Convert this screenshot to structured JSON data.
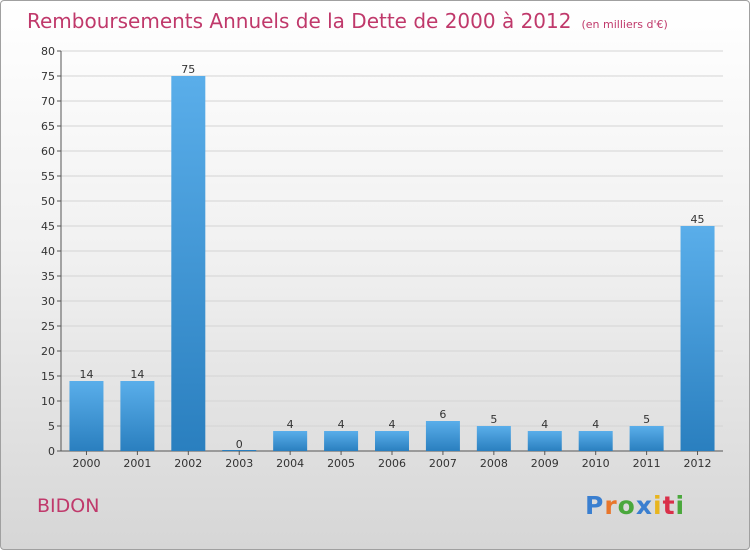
{
  "title": "Remboursements Annuels de la Dette de 2000 à 2012",
  "unit_note": "(en milliers d'€)",
  "commune": "BIDON",
  "logo": {
    "text": "Proxiti",
    "letter_colors": [
      "#3a7fd0",
      "#e8762b",
      "#4aa83c",
      "#3a7fd0",
      "#e8b51e",
      "#d9304a",
      "#4aa83c"
    ]
  },
  "chart_data": {
    "type": "bar",
    "title": "Remboursements Annuels de la Dette de 2000 à 2012",
    "categories": [
      "2000",
      "2001",
      "2002",
      "2003",
      "2004",
      "2005",
      "2006",
      "2007",
      "2008",
      "2009",
      "2010",
      "2011",
      "2012"
    ],
    "values": [
      14,
      14,
      75,
      0,
      4,
      4,
      4,
      6,
      5,
      4,
      4,
      5,
      45
    ],
    "data_labels": [
      "14",
      "14",
      "75",
      "0",
      "4",
      "4",
      "4",
      "6",
      "5",
      "4",
      "4",
      "5",
      "45"
    ],
    "ylim": [
      0,
      80
    ],
    "yticks": [
      0,
      5,
      10,
      15,
      20,
      25,
      30,
      35,
      40,
      45,
      50,
      55,
      60,
      65,
      70,
      75,
      80
    ],
    "grid": true,
    "colors": {
      "bar_top": "#5aaeea",
      "bar_bottom": "#2a7fbf",
      "grid": "#d4d4d4"
    }
  }
}
